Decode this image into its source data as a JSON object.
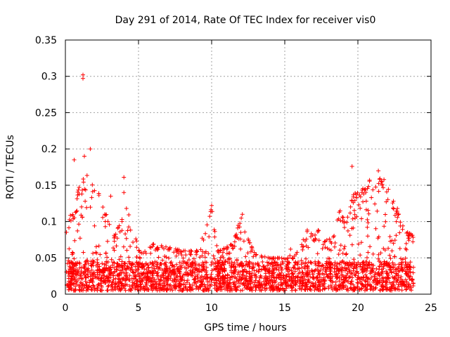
{
  "chart_data": {
    "type": "scatter",
    "title": "Day 291 of 2014, Rate Of TEC Index for receiver vis0",
    "xlabel": "GPS time / hours",
    "ylabel": "ROTI / TECUs",
    "xlim": [
      0,
      25
    ],
    "ylim": [
      0,
      0.35
    ],
    "grid": true,
    "marker": "+",
    "color": "#ff0000",
    "x_ticks": [
      0,
      5,
      10,
      15,
      20,
      25
    ],
    "x_tick_labels": [
      "0",
      "5",
      "10",
      "15",
      "20",
      "25"
    ],
    "y_ticks": [
      0,
      0.05,
      0.1,
      0.15,
      0.2,
      0.25,
      0.3,
      0.35
    ],
    "y_tick_labels": [
      "0",
      "0.05",
      "0.1",
      "0.15",
      "0.2",
      "0.25",
      "0.3",
      "0.35"
    ],
    "data_range_x": [
      0,
      23.8
    ],
    "baseline_band": [
      0.005,
      0.045
    ],
    "envelope": [
      {
        "x": 0.0,
        "y": 0.09
      },
      {
        "x": 0.3,
        "y": 0.12
      },
      {
        "x": 0.6,
        "y": 0.105
      },
      {
        "x": 0.9,
        "y": 0.15
      },
      {
        "x": 1.2,
        "y": 0.16
      },
      {
        "x": 1.5,
        "y": 0.17
      },
      {
        "x": 1.8,
        "y": 0.175
      },
      {
        "x": 2.0,
        "y": 0.16
      },
      {
        "x": 2.4,
        "y": 0.13
      },
      {
        "x": 2.8,
        "y": 0.11
      },
      {
        "x": 3.3,
        "y": 0.08
      },
      {
        "x": 3.8,
        "y": 0.1
      },
      {
        "x": 4.2,
        "y": 0.12
      },
      {
        "x": 4.6,
        "y": 0.1
      },
      {
        "x": 5.0,
        "y": 0.06
      },
      {
        "x": 6.0,
        "y": 0.07
      },
      {
        "x": 7.0,
        "y": 0.065
      },
      {
        "x": 8.0,
        "y": 0.06
      },
      {
        "x": 9.0,
        "y": 0.06
      },
      {
        "x": 9.6,
        "y": 0.09
      },
      {
        "x": 10.0,
        "y": 0.12
      },
      {
        "x": 10.4,
        "y": 0.06
      },
      {
        "x": 11.0,
        "y": 0.065
      },
      {
        "x": 11.5,
        "y": 0.07
      },
      {
        "x": 12.0,
        "y": 0.11
      },
      {
        "x": 12.4,
        "y": 0.08
      },
      {
        "x": 13.0,
        "y": 0.055
      },
      {
        "x": 14.0,
        "y": 0.05
      },
      {
        "x": 15.0,
        "y": 0.05
      },
      {
        "x": 16.0,
        "y": 0.06
      },
      {
        "x": 16.5,
        "y": 0.09
      },
      {
        "x": 17.0,
        "y": 0.08
      },
      {
        "x": 17.6,
        "y": 0.1
      },
      {
        "x": 18.2,
        "y": 0.07
      },
      {
        "x": 18.8,
        "y": 0.12
      },
      {
        "x": 19.2,
        "y": 0.1
      },
      {
        "x": 19.7,
        "y": 0.14
      },
      {
        "x": 20.2,
        "y": 0.14
      },
      {
        "x": 20.7,
        "y": 0.16
      },
      {
        "x": 21.2,
        "y": 0.15
      },
      {
        "x": 21.6,
        "y": 0.165
      },
      {
        "x": 22.0,
        "y": 0.15
      },
      {
        "x": 22.4,
        "y": 0.13
      },
      {
        "x": 22.8,
        "y": 0.11
      },
      {
        "x": 23.2,
        "y": 0.09
      },
      {
        "x": 23.8,
        "y": 0.08
      }
    ],
    "outliers": [
      {
        "x": 1.2,
        "y": 0.302
      },
      {
        "x": 1.2,
        "y": 0.297
      },
      {
        "x": 1.7,
        "y": 0.2
      },
      {
        "x": 0.6,
        "y": 0.185
      },
      {
        "x": 1.3,
        "y": 0.19
      },
      {
        "x": 19.6,
        "y": 0.176
      },
      {
        "x": 21.4,
        "y": 0.17
      },
      {
        "x": 4.0,
        "y": 0.161
      },
      {
        "x": 3.1,
        "y": 0.135
      },
      {
        "x": 4.0,
        "y": 0.14
      },
      {
        "x": 12.1,
        "y": 0.11
      },
      {
        "x": 10.0,
        "y": 0.122
      },
      {
        "x": 15.4,
        "y": 0.062
      },
      {
        "x": 22.7,
        "y": 0.118
      }
    ],
    "point_count": 2600
  }
}
